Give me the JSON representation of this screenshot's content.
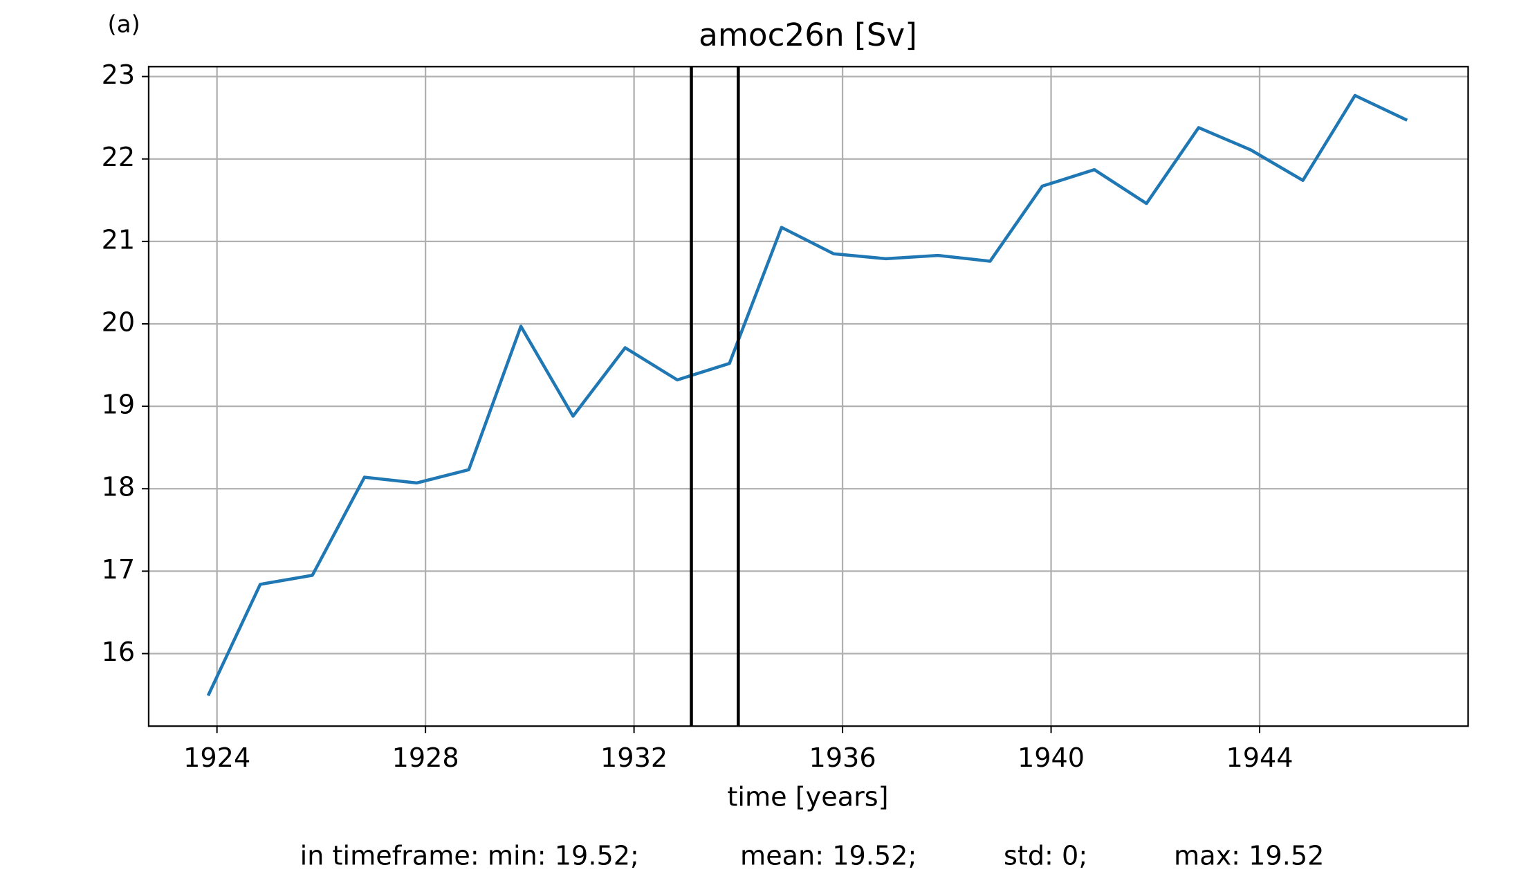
{
  "chart_data": {
    "type": "line",
    "panel_label": "(a)",
    "title": "amoc26n [Sv]",
    "x_label": "time [years]",
    "x": [
      1923.83,
      1924.83,
      1925.83,
      1926.83,
      1927.83,
      1928.83,
      1929.83,
      1930.83,
      1931.83,
      1932.83,
      1933.83,
      1934.83,
      1935.83,
      1936.83,
      1937.83,
      1938.83,
      1939.83,
      1940.83,
      1941.83,
      1942.83,
      1943.83,
      1944.83,
      1945.83,
      1946.83
    ],
    "values": [
      15.49,
      16.84,
      16.95,
      18.14,
      18.07,
      18.23,
      19.97,
      18.88,
      19.71,
      19.32,
      19.52,
      21.17,
      20.85,
      20.79,
      20.83,
      20.76,
      21.67,
      21.87,
      21.46,
      22.38,
      22.11,
      21.74,
      22.77,
      22.47
    ],
    "color": "#1f77b4",
    "vlines": [
      1933.1,
      1934.0
    ],
    "vline_color": "#000000",
    "xlim": [
      1922.69,
      1948.0
    ],
    "ylim": [
      15.12,
      23.12
    ],
    "xticks": [
      1924,
      1928,
      1932,
      1936,
      1940,
      1944
    ],
    "yticks": [
      16,
      17,
      18,
      19,
      20,
      21,
      22,
      23
    ],
    "grid": true,
    "stats": [
      "in timeframe: min: 19.52;",
      "mean: 19.52;",
      "std: 0;",
      "max: 19.52"
    ]
  }
}
